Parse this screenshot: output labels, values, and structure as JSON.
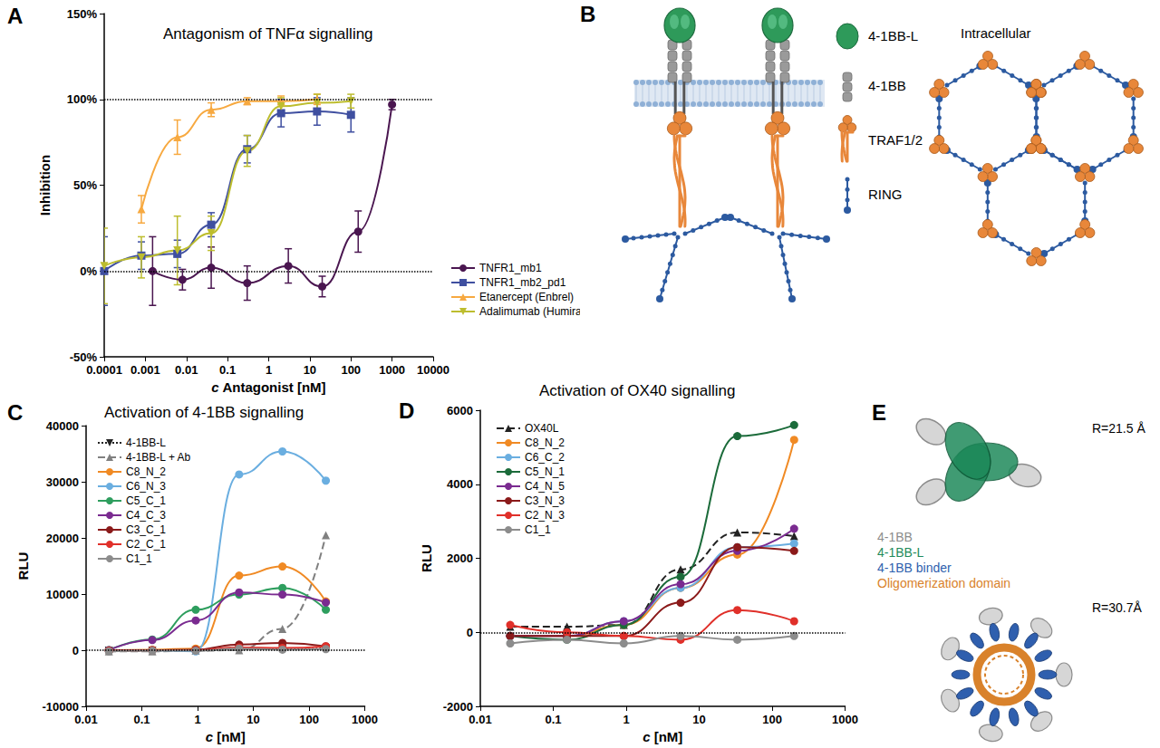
{
  "chart_data": [
    {
      "panel": "A",
      "type": "line",
      "title": "Antagonism of TNFα signalling",
      "x_label": "c Antagonist [nM]",
      "y_label": "Inhibition",
      "log": "x",
      "grid": false,
      "legend": "right",
      "xlim": [
        0.0001,
        10000
      ],
      "xticks": [
        0.0001,
        0.001,
        0.01,
        0.1,
        1,
        10,
        100,
        1000,
        10000
      ],
      "ylim": [
        -50,
        150
      ],
      "yticks": [
        {
          "value": -50,
          "label": "-50%"
        },
        {
          "value": 0,
          "label": "0%"
        },
        {
          "value": 50,
          "label": "50%"
        },
        {
          "value": 100,
          "label": "100%"
        },
        {
          "value": 150,
          "label": "150%"
        }
      ],
      "reference_lines": [
        0,
        100
      ],
      "series": [
        {
          "name": "TNFR1_mb1",
          "color": "#4a1650",
          "marker": "circle",
          "line_style": "solid",
          "x": [
            0.0015,
            0.008,
            0.04,
            0.3,
            3,
            20,
            150,
            1000
          ],
          "values": [
            0,
            -5,
            2,
            -7,
            3,
            -9,
            23,
            97
          ],
          "errors": [
            20,
            6,
            12,
            10,
            10,
            6,
            12,
            3
          ]
        },
        {
          "name": "TNFR1_mb2_pd1",
          "color": "#3f4fa0",
          "marker": "square",
          "line_style": "solid",
          "x": [
            0.0001,
            0.0008,
            0.006,
            0.04,
            0.3,
            2,
            15,
            100
          ],
          "values": [
            0,
            9,
            10,
            27,
            71,
            92,
            93,
            91
          ],
          "errors": [
            20,
            8,
            8,
            7,
            8,
            8,
            8,
            10
          ]
        },
        {
          "name": "Etanercept (Enbrel)",
          "color": "#f7a940",
          "marker": "triangle",
          "line_style": "solid",
          "x": [
            0.0008,
            0.006,
            0.04,
            0.3,
            2,
            15
          ],
          "values": [
            36,
            78,
            94,
            99,
            99,
            100
          ],
          "errors": [
            8,
            10,
            4,
            2,
            3,
            3
          ]
        },
        {
          "name": "Adalimumab (Humira)",
          "color": "#bdbd2e",
          "marker": "triangle_down",
          "line_style": "solid",
          "x": [
            0.0001,
            0.0008,
            0.006,
            0.04,
            0.3,
            2,
            15,
            100
          ],
          "values": [
            3,
            8,
            12,
            22,
            70,
            96,
            98,
            99
          ],
          "errors": [
            22,
            12,
            20,
            10,
            9,
            5,
            5,
            4
          ]
        }
      ]
    },
    {
      "panel": "C",
      "type": "line",
      "title": "Activation of 4-1BB signalling",
      "x_label": "c [nM]",
      "y_label": "RLU",
      "log": "x",
      "grid": false,
      "legend": "upper left",
      "xlim": [
        0.01,
        1000
      ],
      "xticks": [
        0.01,
        0.1,
        1,
        10,
        100,
        1000
      ],
      "ylim": [
        -10000,
        40000
      ],
      "yticks": [
        -10000,
        0,
        10000,
        20000,
        30000,
        40000
      ],
      "reference_lines": [
        0
      ],
      "x": [
        0.0257,
        0.154,
        0.926,
        5.56,
        33.3,
        200
      ],
      "series": [
        {
          "name": "4-1BB-L",
          "color": "#222222",
          "marker": "triangle_down",
          "line_style": "dotted",
          "values": [
            -100,
            -100,
            -50,
            100,
            200,
            300
          ]
        },
        {
          "name": "4-1BB-L + Ab",
          "color": "#808080",
          "marker": "triangle",
          "line_style": "dashed",
          "values": [
            -200,
            -200,
            -100,
            0,
            3800,
            20500
          ]
        },
        {
          "name": "C8_N_2",
          "color": "#f08a24",
          "marker": "circle",
          "line_style": "solid",
          "values": [
            0,
            100,
            300,
            13300,
            14900,
            8700
          ]
        },
        {
          "name": "C6_N_3",
          "color": "#6aaee0",
          "marker": "circle",
          "line_style": "solid",
          "values": [
            0,
            0,
            -200,
            31300,
            35400,
            30200
          ]
        },
        {
          "name": "C5_C_1",
          "color": "#2e9e5e",
          "marker": "circle",
          "line_style": "solid",
          "values": [
            0,
            1900,
            7200,
            9900,
            11100,
            7200
          ]
        },
        {
          "name": "C4_C_3",
          "color": "#7a2b90",
          "marker": "circle",
          "line_style": "solid",
          "values": [
            0,
            1800,
            5300,
            10300,
            9900,
            8500
          ]
        },
        {
          "name": "C3_C_1",
          "color": "#8b1a1a",
          "marker": "circle",
          "line_style": "solid",
          "values": [
            -100,
            0,
            100,
            1000,
            1300,
            700
          ]
        },
        {
          "name": "C2_C_1",
          "color": "#e0302a",
          "marker": "circle",
          "line_style": "solid",
          "values": [
            -100,
            0,
            0,
            500,
            400,
            700
          ]
        },
        {
          "name": "C1_1",
          "color": "#8c8c8c",
          "marker": "circle",
          "line_style": "solid",
          "values": [
            -200,
            -100,
            -100,
            300,
            100,
            200
          ]
        }
      ]
    },
    {
      "panel": "D",
      "type": "line",
      "title": "Activation of OX40 signalling",
      "x_label": "c [nM]",
      "y_label": "RLU",
      "log": "x",
      "grid": false,
      "legend": "upper left",
      "xlim": [
        0.01,
        1000
      ],
      "xticks": [
        0.01,
        0.1,
        1,
        10,
        100,
        1000
      ],
      "ylim": [
        -2000,
        6000
      ],
      "yticks": [
        -2000,
        0,
        2000,
        4000,
        6000
      ],
      "reference_lines": [
        0
      ],
      "x": [
        0.0257,
        0.154,
        0.926,
        5.56,
        33.3,
        200
      ],
      "series": [
        {
          "name": "OX40L",
          "color": "#222222",
          "marker": "triangle",
          "line_style": "dashed",
          "values": [
            150,
            150,
            200,
            1700,
            2700,
            2600
          ]
        },
        {
          "name": "C8_N_2",
          "color": "#f08a24",
          "marker": "circle",
          "line_style": "solid",
          "values": [
            -100,
            -100,
            200,
            1200,
            2100,
            5200
          ]
        },
        {
          "name": "C6_C_2",
          "color": "#6aaee0",
          "marker": "circle",
          "line_style": "solid",
          "values": [
            -100,
            -100,
            300,
            1200,
            2300,
            2400
          ]
        },
        {
          "name": "C5_N_1",
          "color": "#1b6b3a",
          "marker": "circle",
          "line_style": "solid",
          "values": [
            -100,
            -200,
            200,
            1500,
            5300,
            5600
          ]
        },
        {
          "name": "C4_N_5",
          "color": "#7a2b90",
          "marker": "circle",
          "line_style": "solid",
          "values": [
            -100,
            -100,
            300,
            1300,
            2200,
            2800
          ]
        },
        {
          "name": "C3_N_3",
          "color": "#8b1a1a",
          "marker": "circle",
          "line_style": "solid",
          "values": [
            -100,
            -100,
            -100,
            800,
            2300,
            2200
          ]
        },
        {
          "name": "C2_N_3",
          "color": "#e0302a",
          "marker": "circle",
          "line_style": "solid",
          "values": [
            200,
            0,
            -100,
            -200,
            600,
            300
          ]
        },
        {
          "name": "C1_1",
          "color": "#8c8c8c",
          "marker": "circle",
          "line_style": "solid",
          "values": [
            -300,
            -200,
            -300,
            -100,
            -200,
            -100
          ]
        }
      ]
    }
  ],
  "diagrams": [
    {
      "panel": "B",
      "region": "Intracellular",
      "items": [
        {
          "label": "4-1BB-L",
          "color": "#2e9a5a"
        },
        {
          "label": "4-1BB",
          "color": "#9a9a9a"
        },
        {
          "label": "TRAF1/2",
          "color": "#e8873a"
        },
        {
          "label": "RING",
          "color": "#2c5aa0"
        }
      ]
    },
    {
      "panel": "E",
      "radii": [
        "R=21.5 Å",
        "R=30.7Å"
      ],
      "items": [
        {
          "label": "4-1BB",
          "color": "#8c8c8c"
        },
        {
          "label": "4-1BB-L",
          "color": "#1f8a5b"
        },
        {
          "label": "4-1BB binder",
          "color": "#2f5fae"
        },
        {
          "label": "Oligomerization domain",
          "color": "#d9822b"
        }
      ]
    }
  ]
}
